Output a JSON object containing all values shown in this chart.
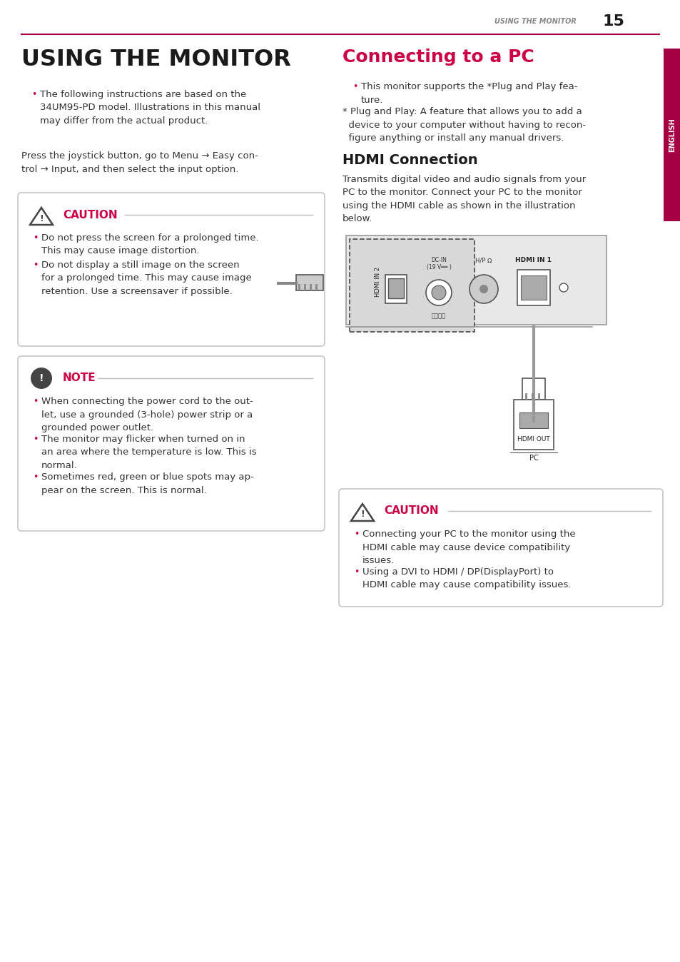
{
  "page_header_text": "USING THE MONITOR",
  "page_number": "15",
  "header_line_color": "#a50044",
  "header_text_color": "#888888",
  "sidebar_color": "#a50044",
  "sidebar_text": "ENGLISH",
  "left_title": "USING THE MONITOR",
  "left_title_color": "#1a1a1a",
  "bullet_color": "#cc0044",
  "bullet_char": "•",
  "left_intro_bullet": "The following instructions are based on the\n34UM95-PD model. Illustrations in this manual\nmay differ from the actual product.",
  "left_para": "Press the joystick button, go to Menu → Easy con-\ntrol → Input, and then select the input option.",
  "caution1_title": "CAUTION",
  "caution1_color": "#cc0044",
  "caution1_bullets": [
    "Do not press the screen for a prolonged time.\nThis may cause image distortion.",
    "Do not display a still image on the screen\nfor a prolonged time. This may cause image\nretention. Use a screensaver if possible."
  ],
  "note_title": "NOTE",
  "note_color": "#cc0044",
  "note_icon_bg": "#555555",
  "note_bullets": [
    "When connecting the power cord to the out-\nlet, use a grounded (3-hole) power strip or a\ngrounded power outlet.",
    "The monitor may flicker when turned on in\nan area where the temperature is low. This is\nnormal.",
    "Sometimes red, green or blue spots may ap-\npear on the screen. This is normal."
  ],
  "right_title": "Connecting to a PC",
  "right_title_color": "#cc0044",
  "right_intro_bullet": "This monitor supports the *Plug and Play fea-\nture.",
  "right_note_text": "* Plug and Play: A feature that allows you to add a\n  device to your computer without having to recon-\n  figure anything or install any manual drivers.",
  "hdmi_section_title": "HDMI Connection",
  "hdmi_section_title_color": "#1a1a1a",
  "hdmi_desc": "Transmits digital video and audio signals from your\nPC to the monitor. Connect your PC to the monitor\nusing the HDMI cable as shown in the illustration\nbelow.",
  "caution2_title": "CAUTION",
  "caution2_color": "#cc0044",
  "caution2_bullets": [
    "Connecting your PC to the monitor using the\nHDMI cable may cause device compatibility\nissues.",
    "Using a DVI to HDMI / DP(DisplayPort) to\nHDMI cable may cause compatibility issues."
  ],
  "box_border_color": "#bbbbbb",
  "text_color": "#333333",
  "body_font_size": 9.5,
  "background_color": "#ffffff"
}
